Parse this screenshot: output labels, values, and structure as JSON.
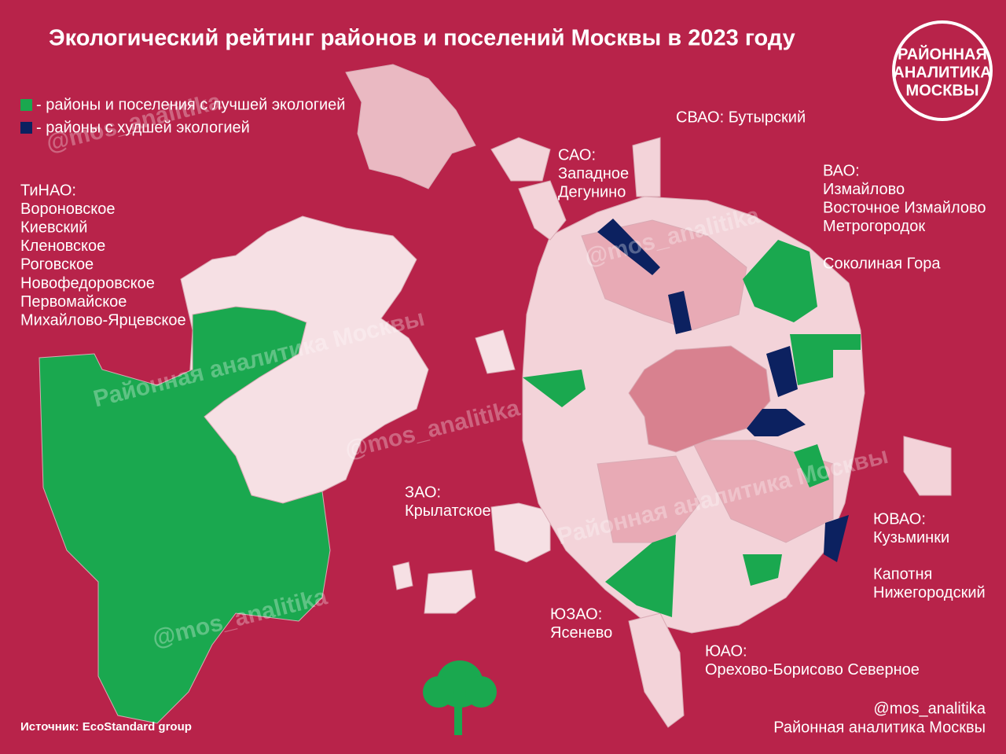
{
  "header": {
    "title": "Экологический рейтинг районов и поселений Москвы в 2023 году"
  },
  "logo": {
    "lines": [
      "РАЙОННАЯ",
      "АНАЛИТИКА",
      "МОСКВЫ"
    ]
  },
  "legend": [
    {
      "label": "- районы и поселения с лучшей экологией",
      "color": "#1aa84f"
    },
    {
      "label": "- районы с худшей экологией",
      "color": "#0c2160"
    }
  ],
  "labels": [
    {
      "lines": [
        "ТиНАО:",
        "Вороновское",
        "Киевский",
        "Кленовское",
        "Роговское",
        "Новофедоровское",
        "Первомайское",
        "Михайлово-Ярцевское"
      ]
    },
    {
      "lines": [
        "СВАО: Бутырский"
      ]
    },
    {
      "lines": [
        "САО:",
        "Западное",
        "Дегунино"
      ]
    },
    {
      "lines": [
        "ВАО:",
        "Измайлово",
        "Восточное Измайлово",
        "Метрогородок"
      ]
    },
    {
      "lines": [
        "Соколиная Гора"
      ]
    },
    {
      "lines": [
        "ЗАО:",
        "Крылатское"
      ]
    },
    {
      "lines": [
        "ЮВАО:",
        "Кузьминки"
      ]
    },
    {
      "lines": [
        "Капотня",
        "Нижегородский"
      ]
    },
    {
      "lines": [
        "ЮЗАО:",
        "Ясенево"
      ]
    },
    {
      "lines": [
        "ЮАО:",
        "Орехово-Борисово Северное"
      ]
    }
  ],
  "watermarks": [
    "@mos_analitika",
    "@mos_analitika",
    "@mos_analitika",
    "@mos_analitika",
    "Районная аналитика Москвы",
    "Районная аналитика Москвы"
  ],
  "source": "Источник: EcoStandard group",
  "footer": [
    "@mos_analitika",
    "Районная аналитика Москвы"
  ]
}
